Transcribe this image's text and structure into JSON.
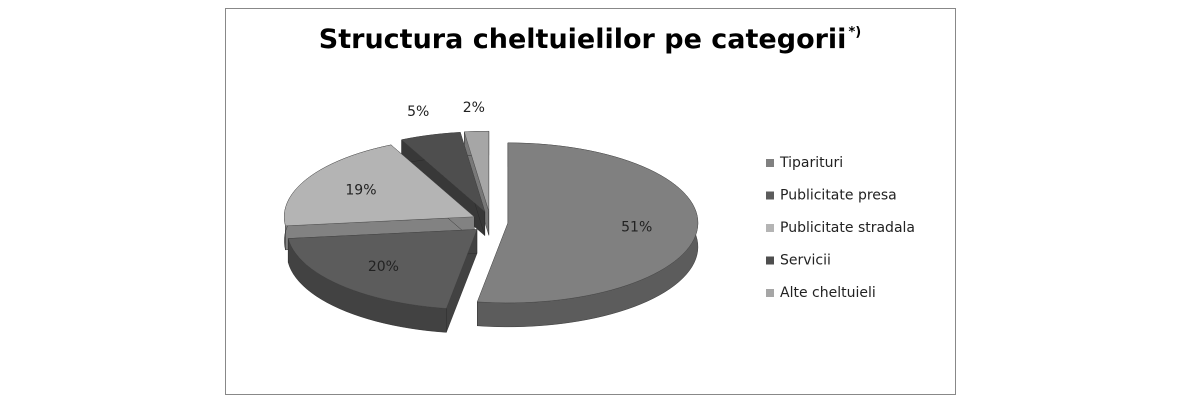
{
  "chart_data": {
    "type": "pie",
    "title": "Structura cheltuielilor pe categorii",
    "title_note": "*)",
    "categories": [
      "Tiparituri",
      "Publicitate presa",
      "Publicitate stradala",
      "Servicii",
      "Alte cheltuieli"
    ],
    "values": [
      51,
      20,
      19,
      5,
      2
    ],
    "value_labels": [
      "51%",
      "20%",
      "19%",
      "5%",
      "2%"
    ],
    "colors": [
      "#808080",
      "#5c5c5c",
      "#b4b4b4",
      "#4e4e4e",
      "#a6a6a6"
    ],
    "legend": "right"
  }
}
